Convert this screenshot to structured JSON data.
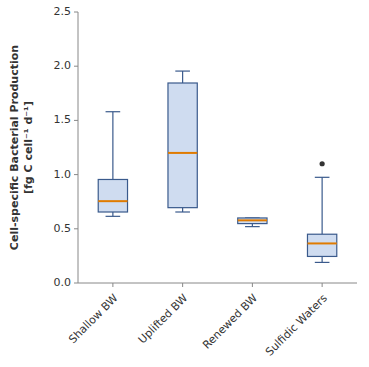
{
  "chart_data": {
    "type": "box",
    "categories": [
      "Shallow BW",
      "Uplifted BW",
      "Renewed BW",
      "Sulfidic Waters"
    ],
    "boxes": [
      {
        "q1": 0.655,
        "median": 0.755,
        "q3": 0.955,
        "whisker_low": 0.615,
        "whisker_high": 1.58,
        "fliers": []
      },
      {
        "q1": 0.695,
        "median": 1.2,
        "q3": 1.845,
        "whisker_low": 0.655,
        "whisker_high": 1.955,
        "fliers": []
      },
      {
        "q1": 0.548,
        "median": 0.578,
        "q3": 0.6,
        "whisker_low": 0.52,
        "whisker_high": 0.6,
        "fliers": []
      },
      {
        "q1": 0.245,
        "median": 0.365,
        "q3": 0.45,
        "whisker_low": 0.19,
        "whisker_high": 0.975,
        "fliers": [
          1.1
        ]
      }
    ],
    "ylabel": "Cell-specific Bacterial Production\n[fg C cell⁻¹ d⁻¹]",
    "ylim": [
      0.0,
      2.5
    ],
    "yticks": [
      {
        "value": 0.0,
        "label": "0.0"
      },
      0.5,
      {
        "value": 1.0,
        "label": "1.0"
      },
      1.5,
      {
        "value": 2.0,
        "label": "2.0"
      },
      2.5
    ],
    "grid": false
  }
}
